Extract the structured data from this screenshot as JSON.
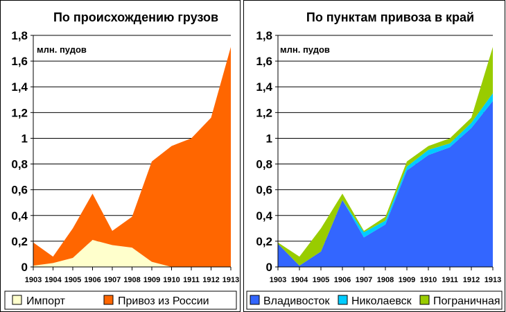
{
  "chart_data": [
    {
      "type": "area",
      "stacked": true,
      "title": "По происхождению грузов",
      "unit_label": "млн. пудов",
      "x": [
        "1903",
        "1904",
        "1905",
        "1906",
        "1907",
        "1908",
        "1909",
        "1910",
        "1911",
        "1912",
        "1913"
      ],
      "ylim": [
        0,
        1.8
      ],
      "yticks": [
        "0",
        "0,2",
        "0,4",
        "0,6",
        "0,8",
        "1",
        "1,2",
        "1,4",
        "1,6",
        "1,8"
      ],
      "grid": "horizontal",
      "legend_position": "bottom",
      "series": [
        {
          "name": "Импорт",
          "color": "#ffffcc",
          "values": [
            0.01,
            0.03,
            0.07,
            0.21,
            0.17,
            0.15,
            0.04,
            0.0,
            0.0,
            0.0,
            0.0
          ]
        },
        {
          "name": "Привоз из России",
          "color": "#ff6600",
          "values": [
            0.18,
            0.05,
            0.23,
            0.36,
            0.11,
            0.24,
            0.78,
            0.94,
            1.0,
            1.16,
            1.71
          ]
        }
      ]
    },
    {
      "type": "area",
      "stacked": true,
      "title": "По пунктам привоза в край",
      "unit_label": "млн. пудов",
      "x": [
        "1903",
        "1904",
        "1905",
        "1906",
        "1907",
        "1908",
        "1909",
        "1910",
        "1911",
        "1912",
        "1913"
      ],
      "ylim": [
        0,
        1.8
      ],
      "yticks": [
        "0",
        "0,2",
        "0,4",
        "0,6",
        "0,8",
        "1",
        "1,2",
        "1,4",
        "1,6",
        "1,8"
      ],
      "grid": "horizontal",
      "legend_position": "bottom",
      "series": [
        {
          "name": "Владивосток",
          "color": "#3366ff",
          "values": [
            0.18,
            0.01,
            0.12,
            0.52,
            0.23,
            0.33,
            0.75,
            0.87,
            0.93,
            1.08,
            1.29
          ]
        },
        {
          "name": "Николаевск",
          "color": "#00ccff",
          "values": [
            0.0,
            0.0,
            0.0,
            0.0,
            0.04,
            0.03,
            0.03,
            0.04,
            0.03,
            0.04,
            0.06
          ]
        },
        {
          "name": "Пограничная",
          "color": "#99cc00",
          "values": [
            0.01,
            0.07,
            0.18,
            0.05,
            0.01,
            0.03,
            0.04,
            0.03,
            0.04,
            0.04,
            0.36
          ]
        }
      ]
    }
  ]
}
